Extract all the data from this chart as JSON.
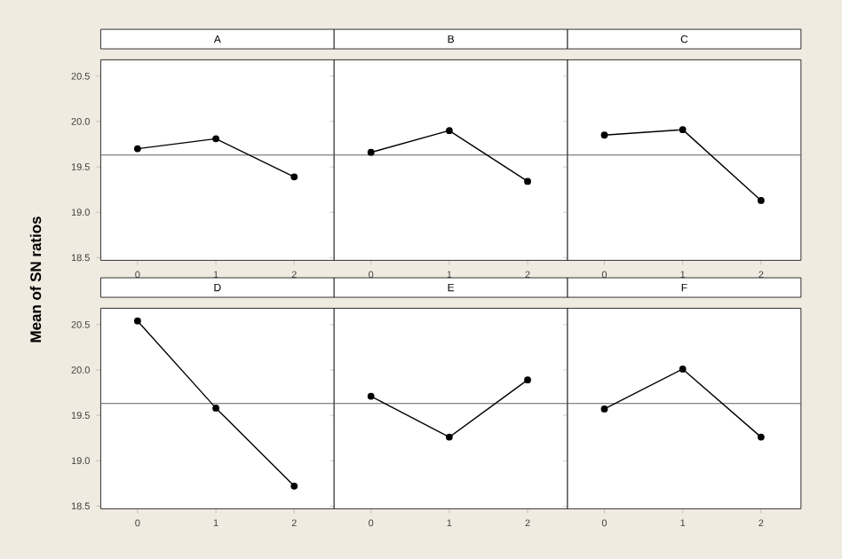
{
  "chart_data": [
    {
      "type": "line",
      "title": "A",
      "ylabel": "Mean of SN ratios",
      "categories": [
        "0",
        "1",
        "2"
      ],
      "series": [
        {
          "color": "#000000",
          "values": [
            19.7,
            19.81,
            19.39
          ]
        }
      ],
      "ylim": [
        18.47,
        20.68
      ],
      "yticks": [
        {
          "value": 18.5,
          "label": "18.5"
        },
        {
          "value": 19.0,
          "label": "19.0"
        },
        {
          "value": 19.5,
          "label": "19.5"
        },
        {
          "value": 20.0,
          "label": "20.0"
        },
        {
          "value": 20.5,
          "label": "20.5"
        }
      ],
      "ref_lines": [
        {
          "axis": "y",
          "value": 19.63,
          "color": "#606060"
        }
      ],
      "marker": "circle",
      "grid": false
    },
    {
      "type": "line",
      "title": "B",
      "categories": [
        "0",
        "1",
        "2"
      ],
      "series": [
        {
          "color": "#000000",
          "values": [
            19.66,
            19.9,
            19.34
          ]
        }
      ],
      "ylim": [
        18.47,
        20.68
      ],
      "yticks": [
        {
          "value": 18.5,
          "label": null
        },
        {
          "value": 19.0,
          "label": null
        },
        {
          "value": 19.5,
          "label": null
        },
        {
          "value": 20.0,
          "label": null
        },
        {
          "value": 20.5,
          "label": null
        }
      ],
      "tick_labels": "x",
      "ref_lines": [
        {
          "axis": "y",
          "value": 19.63,
          "color": "#606060"
        }
      ],
      "marker": "circle",
      "grid": false
    },
    {
      "type": "line",
      "title": "C",
      "categories": [
        "0",
        "1",
        "2"
      ],
      "series": [
        {
          "color": "#000000",
          "values": [
            19.85,
            19.91,
            19.13
          ]
        }
      ],
      "ylim": [
        18.47,
        20.68
      ],
      "yticks": [
        {
          "value": 18.5,
          "label": null
        },
        {
          "value": 19.0,
          "label": null
        },
        {
          "value": 19.5,
          "label": null
        },
        {
          "value": 20.0,
          "label": null
        },
        {
          "value": 20.5,
          "label": null
        }
      ],
      "tick_labels": "x",
      "ref_lines": [
        {
          "axis": "y",
          "value": 19.63,
          "color": "#606060"
        }
      ],
      "marker": "circle",
      "grid": false
    },
    {
      "type": "line",
      "title": "D",
      "categories": [
        "0",
        "1",
        "2"
      ],
      "series": [
        {
          "color": "#000000",
          "values": [
            20.54,
            19.58,
            18.72
          ]
        }
      ],
      "ylim": [
        18.47,
        20.68
      ],
      "yticks": [
        {
          "value": 18.5,
          "label": "18.5"
        },
        {
          "value": 19.0,
          "label": "19.0"
        },
        {
          "value": 19.5,
          "label": "19.5"
        },
        {
          "value": 20.0,
          "label": "20.0"
        },
        {
          "value": 20.5,
          "label": "20.5"
        }
      ],
      "ref_lines": [
        {
          "axis": "y",
          "value": 19.63,
          "color": "#606060"
        }
      ],
      "marker": "circle",
      "grid": false
    },
    {
      "type": "line",
      "title": "E",
      "categories": [
        "0",
        "1",
        "2"
      ],
      "series": [
        {
          "color": "#000000",
          "values": [
            19.71,
            19.26,
            19.89
          ]
        }
      ],
      "ylim": [
        18.47,
        20.68
      ],
      "yticks": [
        {
          "value": 18.5,
          "label": null
        },
        {
          "value": 19.0,
          "label": null
        },
        {
          "value": 19.5,
          "label": null
        },
        {
          "value": 20.0,
          "label": null
        },
        {
          "value": 20.5,
          "label": null
        }
      ],
      "tick_labels": "x",
      "ref_lines": [
        {
          "axis": "y",
          "value": 19.63,
          "color": "#606060"
        }
      ],
      "marker": "circle",
      "grid": false
    },
    {
      "type": "line",
      "title": "F",
      "categories": [
        "0",
        "1",
        "2"
      ],
      "series": [
        {
          "color": "#000000",
          "values": [
            19.57,
            20.01,
            19.26
          ]
        }
      ],
      "ylim": [
        18.47,
        20.68
      ],
      "yticks": [
        {
          "value": 18.5,
          "label": null
        },
        {
          "value": 19.0,
          "label": null
        },
        {
          "value": 19.5,
          "label": null
        },
        {
          "value": 20.0,
          "label": null
        },
        {
          "value": 20.5,
          "label": null
        }
      ],
      "tick_labels": "x",
      "ref_lines": [
        {
          "axis": "y",
          "value": 19.63,
          "color": "#606060"
        }
      ],
      "marker": "circle",
      "grid": false
    }
  ]
}
